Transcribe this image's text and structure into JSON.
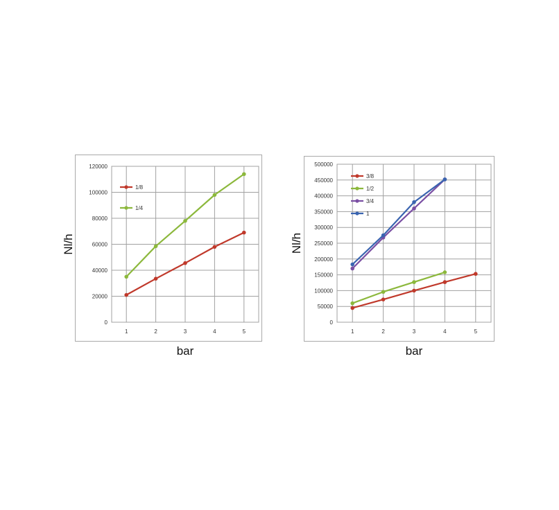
{
  "chart_data": [
    {
      "type": "line",
      "title": "",
      "xlabel": "bar",
      "ylabel": "Nl/h",
      "categories": [
        "1",
        "2",
        "3",
        "4",
        "5"
      ],
      "x": [
        1,
        2,
        3,
        4,
        5
      ],
      "ylim": [
        0,
        120000
      ],
      "yticks": [
        "0",
        "20000",
        "40000",
        "60000",
        "80000",
        "100000",
        "120000"
      ],
      "grid": true,
      "legend_position": "top-left",
      "series": [
        {
          "name": "1/8",
          "color": "#c0392b",
          "values": [
            21000,
            33500,
            45500,
            58000,
            69000
          ]
        },
        {
          "name": "1/4",
          "color": "#8cb83c",
          "values": [
            35000,
            58500,
            78000,
            98000,
            114000
          ]
        }
      ]
    },
    {
      "type": "line",
      "title": "",
      "xlabel": "bar",
      "ylabel": "Nl/h",
      "categories": [
        "1",
        "2",
        "3",
        "4",
        "5"
      ],
      "x": [
        1,
        2,
        3,
        4,
        5
      ],
      "ylim": [
        0,
        500000
      ],
      "yticks": [
        "0",
        "50000",
        "100000",
        "150000",
        "200000",
        "250000",
        "300000",
        "350000",
        "400000",
        "450000",
        "500000"
      ],
      "grid": true,
      "legend_position": "top-left",
      "series": [
        {
          "name": "3/8",
          "color": "#c0392b",
          "values": [
            45000,
            72000,
            100000,
            127000,
            153000
          ]
        },
        {
          "name": "1/2",
          "color": "#8cb83c",
          "values": [
            60000,
            96000,
            127000,
            158000,
            null
          ]
        },
        {
          "name": "3/4",
          "color": "#7a4fa3",
          "values": [
            170000,
            268000,
            360000,
            452000,
            null
          ]
        },
        {
          "name": "1",
          "color": "#3a64b0",
          "values": [
            183000,
            275000,
            380000,
            452000,
            null
          ]
        }
      ]
    }
  ]
}
